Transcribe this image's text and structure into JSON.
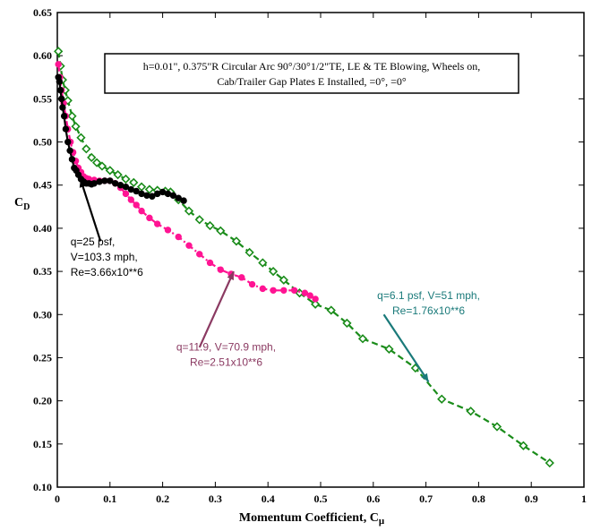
{
  "chart_data": {
    "type": "scatter",
    "title": "",
    "xlabel_main": "Momentum Coefficient, C",
    "xlabel_sub": "μ",
    "ylabel_main": "C",
    "ylabel_sub": "D",
    "xlim": [
      0,
      1
    ],
    "ylim": [
      0.1,
      0.65
    ],
    "xticks": [
      "0",
      "0.1",
      "0.2",
      "0.3",
      "0.4",
      "0.5",
      "0.6",
      "0.7",
      "0.8",
      "0.9",
      "1"
    ],
    "yticks": [
      "0.10",
      "0.15",
      "0.20",
      "0.25",
      "0.30",
      "0.35",
      "0.40",
      "0.45",
      "0.50",
      "0.55",
      "0.60",
      "0.65"
    ],
    "grid": false,
    "legend_box": {
      "line1": "h=0.01\", 0.375\"R Circular Arc 90°/30°1/2\"TE, LE & TE Blowing, Wheels on,",
      "line2": "Cab/Trailer Gap Plates E Installed,     =0°,    =0°"
    },
    "series": [
      {
        "name": "q=25 psf",
        "color": "#000000",
        "marker": "circle",
        "points": [
          [
            0.002,
            0.575
          ],
          [
            0.004,
            0.57
          ],
          [
            0.006,
            0.56
          ],
          [
            0.008,
            0.55
          ],
          [
            0.01,
            0.54
          ],
          [
            0.013,
            0.53
          ],
          [
            0.016,
            0.515
          ],
          [
            0.02,
            0.5
          ],
          [
            0.024,
            0.49
          ],
          [
            0.028,
            0.48
          ],
          [
            0.032,
            0.47
          ],
          [
            0.036,
            0.467
          ],
          [
            0.04,
            0.462
          ],
          [
            0.045,
            0.457
          ],
          [
            0.05,
            0.454
          ],
          [
            0.055,
            0.452
          ],
          [
            0.06,
            0.452
          ],
          [
            0.065,
            0.451
          ],
          [
            0.07,
            0.452
          ],
          [
            0.08,
            0.454
          ],
          [
            0.09,
            0.455
          ],
          [
            0.1,
            0.455
          ],
          [
            0.11,
            0.452
          ],
          [
            0.12,
            0.45
          ],
          [
            0.13,
            0.448
          ],
          [
            0.14,
            0.445
          ],
          [
            0.15,
            0.443
          ],
          [
            0.16,
            0.44
          ],
          [
            0.17,
            0.438
          ],
          [
            0.18,
            0.437
          ],
          [
            0.19,
            0.44
          ],
          [
            0.2,
            0.442
          ],
          [
            0.21,
            0.44
          ],
          [
            0.22,
            0.438
          ],
          [
            0.23,
            0.435
          ],
          [
            0.24,
            0.432
          ]
        ]
      },
      {
        "name": "q=11.9",
        "color": "#ff1493",
        "marker": "circle",
        "points": [
          [
            0.002,
            0.59
          ],
          [
            0.005,
            0.575
          ],
          [
            0.008,
            0.56
          ],
          [
            0.012,
            0.545
          ],
          [
            0.016,
            0.53
          ],
          [
            0.02,
            0.515
          ],
          [
            0.025,
            0.5
          ],
          [
            0.03,
            0.488
          ],
          [
            0.035,
            0.478
          ],
          [
            0.04,
            0.47
          ],
          [
            0.045,
            0.465
          ],
          [
            0.05,
            0.46
          ],
          [
            0.055,
            0.458
          ],
          [
            0.06,
            0.457
          ],
          [
            0.07,
            0.456
          ],
          [
            0.08,
            0.455
          ],
          [
            0.09,
            0.455
          ],
          [
            0.1,
            0.455
          ],
          [
            0.11,
            0.452
          ],
          [
            0.12,
            0.447
          ],
          [
            0.13,
            0.44
          ],
          [
            0.14,
            0.433
          ],
          [
            0.15,
            0.427
          ],
          [
            0.16,
            0.42
          ],
          [
            0.175,
            0.412
          ],
          [
            0.19,
            0.405
          ],
          [
            0.21,
            0.398
          ],
          [
            0.23,
            0.39
          ],
          [
            0.25,
            0.38
          ],
          [
            0.27,
            0.37
          ],
          [
            0.29,
            0.36
          ],
          [
            0.31,
            0.352
          ],
          [
            0.33,
            0.347
          ],
          [
            0.35,
            0.343
          ],
          [
            0.37,
            0.335
          ],
          [
            0.39,
            0.33
          ],
          [
            0.41,
            0.328
          ],
          [
            0.43,
            0.328
          ],
          [
            0.45,
            0.328
          ],
          [
            0.47,
            0.325
          ],
          [
            0.48,
            0.322
          ],
          [
            0.49,
            0.318
          ]
        ]
      },
      {
        "name": "q=6.1 psf",
        "color": "#1a8c1a",
        "marker": "diamond",
        "points": [
          [
            0.002,
            0.605
          ],
          [
            0.006,
            0.588
          ],
          [
            0.01,
            0.572
          ],
          [
            0.015,
            0.56
          ],
          [
            0.02,
            0.548
          ],
          [
            0.028,
            0.53
          ],
          [
            0.035,
            0.518
          ],
          [
            0.045,
            0.505
          ],
          [
            0.055,
            0.492
          ],
          [
            0.065,
            0.482
          ],
          [
            0.075,
            0.476
          ],
          [
            0.085,
            0.472
          ],
          [
            0.1,
            0.467
          ],
          [
            0.115,
            0.462
          ],
          [
            0.13,
            0.457
          ],
          [
            0.145,
            0.453
          ],
          [
            0.16,
            0.448
          ],
          [
            0.175,
            0.445
          ],
          [
            0.19,
            0.444
          ],
          [
            0.205,
            0.443
          ],
          [
            0.215,
            0.442
          ],
          [
            0.23,
            0.433
          ],
          [
            0.25,
            0.42
          ],
          [
            0.27,
            0.41
          ],
          [
            0.29,
            0.403
          ],
          [
            0.31,
            0.397
          ],
          [
            0.34,
            0.385
          ],
          [
            0.365,
            0.372
          ],
          [
            0.39,
            0.36
          ],
          [
            0.41,
            0.35
          ],
          [
            0.43,
            0.34
          ],
          [
            0.46,
            0.325
          ],
          [
            0.49,
            0.312
          ],
          [
            0.52,
            0.305
          ],
          [
            0.55,
            0.29
          ],
          [
            0.58,
            0.272
          ],
          [
            0.63,
            0.26
          ],
          [
            0.68,
            0.238
          ],
          [
            0.73,
            0.202
          ],
          [
            0.785,
            0.188
          ],
          [
            0.835,
            0.17
          ],
          [
            0.885,
            0.148
          ],
          [
            0.935,
            0.128
          ]
        ]
      }
    ],
    "annotations": [
      {
        "lines": [
          "q=25 psf,",
          "V=103.3 mph,",
          "Re=3.66x10**6"
        ],
        "color": "#000000",
        "arrow_tip": [
          0.044,
          0.457
        ],
        "arrow_base": [
          0.082,
          0.385
        ],
        "text_anchor_point": [
          0.025,
          0.38
        ]
      },
      {
        "lines": [
          "q=11.9, V=70.9 mph,",
          "Re=2.51x10**6"
        ],
        "color": "#8b3a62",
        "arrow_tip": [
          0.335,
          0.35
        ],
        "arrow_base": [
          0.27,
          0.262
        ],
        "text_anchor_point": [
          0.21,
          0.258
        ]
      },
      {
        "lines": [
          "q=6.1 psf, V=51 mph,",
          "Re=1.76x10**6"
        ],
        "color": "#1a7a7a",
        "arrow_tip": [
          0.705,
          0.222
        ],
        "arrow_base": [
          0.62,
          0.3
        ],
        "text_anchor_point": [
          0.62,
          0.318
        ]
      }
    ]
  }
}
